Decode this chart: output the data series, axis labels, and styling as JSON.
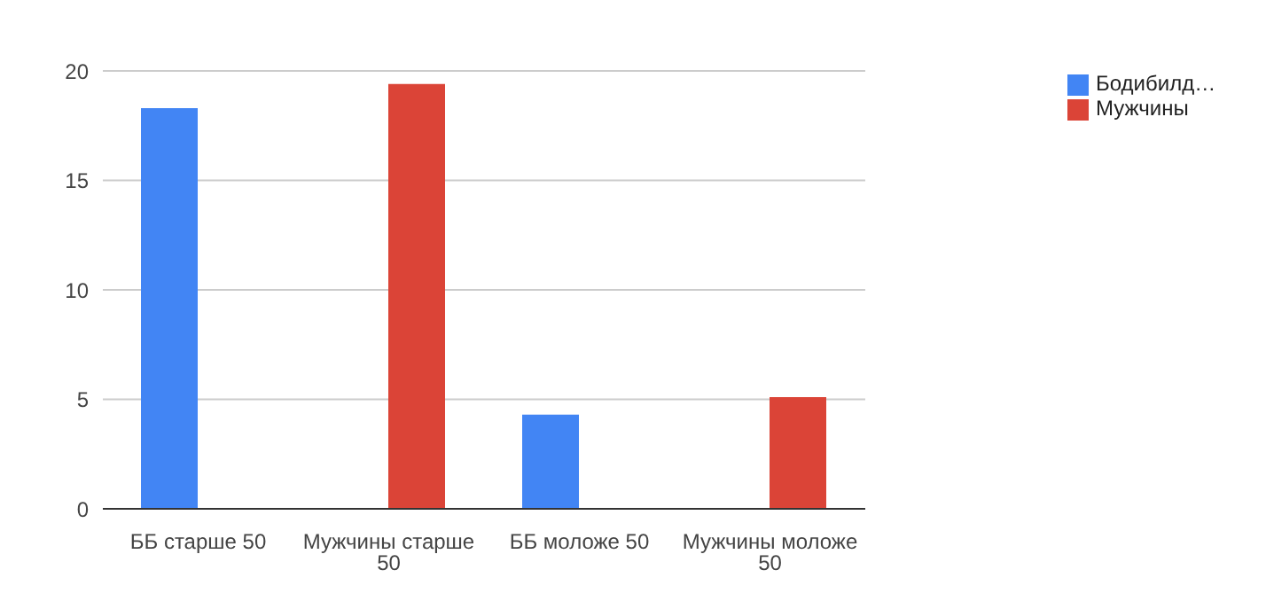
{
  "chart_data": {
    "type": "bar",
    "categories": [
      "ББ старше 50",
      "Мужчины старше 50",
      "ББ моложе 50",
      "Мужчины моложе 50"
    ],
    "series": [
      {
        "name": "Бодибилд…",
        "color": "#4285f4",
        "values": [
          18.3,
          null,
          4.3,
          null
        ]
      },
      {
        "name": "Мужчины",
        "color": "#db4437",
        "values": [
          null,
          19.4,
          null,
          5.1
        ]
      }
    ],
    "ylim": [
      0,
      20
    ],
    "yticks": [
      0,
      5,
      10,
      15,
      20
    ],
    "grid": "y",
    "legend": "top right"
  }
}
